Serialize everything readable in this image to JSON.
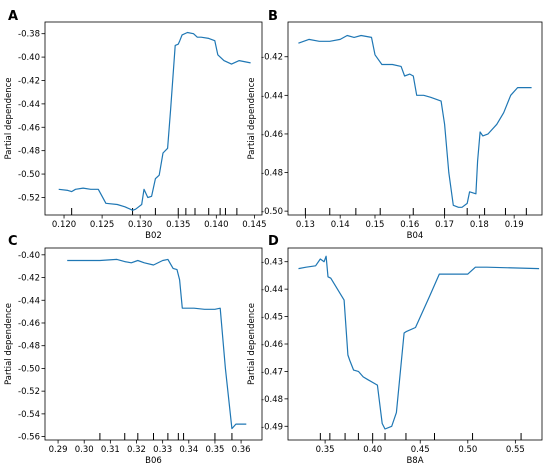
{
  "chart_data": [
    {
      "type": "line",
      "panel": "A",
      "xlabel": "B02",
      "ylabel": "Partial dependence",
      "xlim": [
        0.1175,
        0.146
      ],
      "ylim": [
        -0.535,
        -0.37
      ],
      "xticks": [
        0.12,
        0.125,
        0.13,
        0.135,
        0.14,
        0.145
      ],
      "xtick_labels": [
        "0.120",
        "0.125",
        "0.130",
        "0.135",
        "0.140",
        "0.145"
      ],
      "yticks": [
        -0.52,
        -0.5,
        -0.48,
        -0.46,
        -0.44,
        -0.42,
        -0.4,
        -0.38
      ],
      "ytick_labels": [
        "-0.52",
        "-0.50",
        "-0.48",
        "-0.46",
        "-0.44",
        "-0.42",
        "-0.40",
        "-0.38"
      ],
      "x": [
        0.1193,
        0.1205,
        0.121,
        0.1215,
        0.1225,
        0.1235,
        0.1245,
        0.1255,
        0.127,
        0.128,
        0.1287,
        0.129,
        0.1294,
        0.1298,
        0.1302,
        0.1305,
        0.131,
        0.1315,
        0.132,
        0.1325,
        0.133,
        0.1336,
        0.134,
        0.1346,
        0.135,
        0.1352,
        0.1355,
        0.1362,
        0.137,
        0.1375,
        0.138,
        0.139,
        0.1398,
        0.1402,
        0.141,
        0.142,
        0.143,
        0.1445
      ],
      "y": [
        -0.513,
        -0.514,
        -0.515,
        -0.513,
        -0.512,
        -0.513,
        -0.513,
        -0.525,
        -0.526,
        -0.528,
        -0.53,
        -0.531,
        -0.53,
        -0.528,
        -0.526,
        -0.513,
        -0.52,
        -0.519,
        -0.504,
        -0.501,
        -0.482,
        -0.478,
        -0.445,
        -0.39,
        -0.389,
        -0.386,
        -0.381,
        -0.379,
        -0.38,
        -0.383,
        -0.383,
        -0.384,
        -0.386,
        -0.398,
        -0.403,
        -0.406,
        -0.403,
        -0.405
      ],
      "rug": [
        0.121,
        0.129,
        0.132,
        0.135,
        0.136,
        0.1372,
        0.139,
        0.1405,
        0.1412,
        0.1427
      ]
    },
    {
      "type": "line",
      "panel": "B",
      "xlabel": "B04",
      "ylabel": "Partial dependence",
      "xlim": [
        0.125,
        0.198
      ],
      "ylim": [
        -0.502,
        -0.402
      ],
      "xticks": [
        0.13,
        0.14,
        0.15,
        0.16,
        0.17,
        0.18,
        0.19
      ],
      "xtick_labels": [
        "0.13",
        "0.14",
        "0.15",
        "0.16",
        "0.17",
        "0.18",
        "0.19"
      ],
      "yticks": [
        -0.5,
        -0.48,
        -0.46,
        -0.44,
        -0.42
      ],
      "ytick_labels": [
        "-0.50",
        "-0.48",
        "-0.46",
        "-0.44",
        "-0.42"
      ],
      "x": [
        0.128,
        0.131,
        0.134,
        0.137,
        0.14,
        0.142,
        0.144,
        0.146,
        0.149,
        0.15,
        0.152,
        0.155,
        0.1575,
        0.1585,
        0.16,
        0.161,
        0.162,
        0.164,
        0.166,
        0.169,
        0.17,
        0.1712,
        0.1725,
        0.174,
        0.175,
        0.1765,
        0.1772,
        0.179,
        0.1795,
        0.1802,
        0.181,
        0.1825,
        0.185,
        0.187,
        0.189,
        0.191,
        0.195
      ],
      "y": [
        -0.413,
        -0.411,
        -0.412,
        -0.412,
        -0.411,
        -0.409,
        -0.41,
        -0.409,
        -0.41,
        -0.419,
        -0.424,
        -0.424,
        -0.425,
        -0.43,
        -0.429,
        -0.43,
        -0.44,
        -0.44,
        -0.441,
        -0.443,
        -0.455,
        -0.48,
        -0.497,
        -0.498,
        -0.498,
        -0.496,
        -0.49,
        -0.491,
        -0.474,
        -0.459,
        -0.461,
        -0.46,
        -0.455,
        -0.449,
        -0.44,
        -0.436,
        -0.436
      ],
      "rug": [
        0.13,
        0.137,
        0.1445,
        0.1515,
        0.161,
        0.17,
        0.1765,
        0.1815,
        0.1875,
        0.1935
      ]
    },
    {
      "type": "line",
      "panel": "C",
      "xlabel": "B06",
      "ylabel": "Partial dependence",
      "xlim": [
        0.285,
        0.368
      ],
      "ylim": [
        -0.563,
        -0.394
      ],
      "xticks": [
        0.29,
        0.3,
        0.31,
        0.32,
        0.33,
        0.34,
        0.35,
        0.36
      ],
      "xtick_labels": [
        "0.29",
        "0.30",
        "0.31",
        "0.32",
        "0.33",
        "0.34",
        "0.35",
        "0.36"
      ],
      "yticks": [
        -0.56,
        -0.54,
        -0.52,
        -0.5,
        -0.48,
        -0.46,
        -0.44,
        -0.42,
        -0.4
      ],
      "ytick_labels": [
        "-0.56",
        "-0.54",
        "-0.52",
        "-0.50",
        "-0.48",
        "-0.46",
        "-0.44",
        "-0.42",
        "-0.40"
      ],
      "x": [
        0.2935,
        0.3,
        0.306,
        0.3125,
        0.3155,
        0.318,
        0.3205,
        0.323,
        0.3265,
        0.33,
        0.332,
        0.334,
        0.3355,
        0.3365,
        0.3375,
        0.3385,
        0.342,
        0.346,
        0.35,
        0.352,
        0.354,
        0.3565,
        0.358,
        0.362
      ],
      "y": [
        -0.405,
        -0.405,
        -0.405,
        -0.404,
        -0.406,
        -0.407,
        -0.405,
        -0.407,
        -0.409,
        -0.405,
        -0.404,
        -0.412,
        -0.413,
        -0.422,
        -0.447,
        -0.447,
        -0.447,
        -0.448,
        -0.448,
        -0.447,
        -0.5,
        -0.553,
        -0.549,
        -0.549
      ],
      "rug": [
        0.306,
        0.3155,
        0.3205,
        0.3265,
        0.332,
        0.336,
        0.338,
        0.35,
        0.3565
      ]
    },
    {
      "type": "line",
      "panel": "D",
      "xlabel": "B8A",
      "ylabel": "Partial dependence",
      "xlim": [
        0.311,
        0.578
      ],
      "ylim": [
        -0.495,
        -0.425
      ],
      "xticks": [
        0.35,
        0.4,
        0.45,
        0.5,
        0.55
      ],
      "xtick_labels": [
        "0.35",
        "0.40",
        "0.45",
        "0.50",
        "0.55"
      ],
      "yticks": [
        -0.49,
        -0.48,
        -0.47,
        -0.46,
        -0.45,
        -0.44,
        -0.43
      ],
      "ytick_labels": [
        "-0.49",
        "-0.48",
        "-0.47",
        "-0.46",
        "-0.45",
        "-0.44",
        "-0.43"
      ],
      "x": [
        0.322,
        0.33,
        0.34,
        0.345,
        0.349,
        0.351,
        0.353,
        0.356,
        0.37,
        0.374,
        0.376,
        0.38,
        0.385,
        0.39,
        0.395,
        0.405,
        0.41,
        0.413,
        0.42,
        0.425,
        0.433,
        0.435,
        0.445,
        0.46,
        0.47,
        0.5,
        0.508,
        0.52,
        0.575
      ],
      "y": [
        -0.4325,
        -0.432,
        -0.4315,
        -0.429,
        -0.43,
        -0.428,
        -0.4355,
        -0.436,
        -0.444,
        -0.464,
        -0.466,
        -0.4695,
        -0.47,
        -0.472,
        -0.473,
        -0.475,
        -0.489,
        -0.491,
        -0.49,
        -0.485,
        -0.456,
        -0.4555,
        -0.454,
        -0.4425,
        -0.4345,
        -0.4345,
        -0.432,
        -0.432,
        -0.4325
      ],
      "rug": [
        0.345,
        0.355,
        0.371,
        0.385,
        0.4,
        0.413,
        0.435,
        0.465,
        0.505,
        0.556
      ]
    }
  ]
}
